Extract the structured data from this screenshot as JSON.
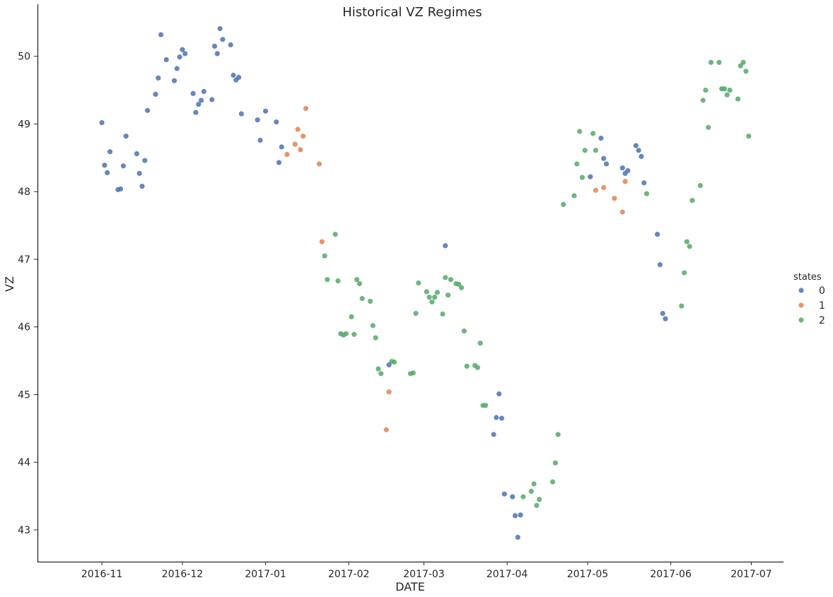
{
  "chart_data": {
    "type": "scatter",
    "title": "Historical VZ Regimes",
    "xlabel": "DATE",
    "ylabel": "VZ",
    "x_range": [
      "2016-10-08",
      "2017-07-13"
    ],
    "ylim": [
      42.53,
      50.77
    ],
    "x_ticks": [
      "2016-11-01",
      "2016-12-01",
      "2017-01-01",
      "2017-02-01",
      "2017-03-01",
      "2017-04-01",
      "2017-05-01",
      "2017-06-01",
      "2017-07-01"
    ],
    "x_tick_labels": [
      "2016-11",
      "2016-12",
      "2017-01",
      "2017-02",
      "2017-03",
      "2017-04",
      "2017-05",
      "2017-06",
      "2017-07"
    ],
    "y_ticks": [
      43,
      44,
      45,
      46,
      47,
      48,
      49,
      50
    ],
    "grid": false,
    "legend": {
      "title": "states",
      "position": "right"
    },
    "series": [
      {
        "name": "0",
        "color": "#4c72b0",
        "points": [
          [
            "2016-11-01",
            49.02
          ],
          [
            "2016-11-02",
            48.39
          ],
          [
            "2016-11-03",
            48.28
          ],
          [
            "2016-11-04",
            48.59
          ],
          [
            "2016-11-07",
            48.03
          ],
          [
            "2016-11-08",
            48.04
          ],
          [
            "2016-11-09",
            48.38
          ],
          [
            "2016-11-10",
            48.82
          ],
          [
            "2016-11-14",
            48.56
          ],
          [
            "2016-11-15",
            48.27
          ],
          [
            "2016-11-16",
            48.08
          ],
          [
            "2016-11-17",
            48.46
          ],
          [
            "2016-11-18",
            49.2
          ],
          [
            "2016-11-21",
            49.44
          ],
          [
            "2016-11-22",
            49.68
          ],
          [
            "2016-11-23",
            50.32
          ],
          [
            "2016-11-25",
            49.95
          ],
          [
            "2016-11-28",
            49.64
          ],
          [
            "2016-11-29",
            49.82
          ],
          [
            "2016-11-30",
            49.99
          ],
          [
            "2016-12-01",
            50.1
          ],
          [
            "2016-12-02",
            50.04
          ],
          [
            "2016-12-05",
            49.45
          ],
          [
            "2016-12-06",
            49.17
          ],
          [
            "2016-12-07",
            49.29
          ],
          [
            "2016-12-08",
            49.35
          ],
          [
            "2016-12-09",
            49.48
          ],
          [
            "2016-12-12",
            49.36
          ],
          [
            "2016-12-13",
            50.15
          ],
          [
            "2016-12-14",
            50.04
          ],
          [
            "2016-12-15",
            50.41
          ],
          [
            "2016-12-16",
            50.25
          ],
          [
            "2016-12-19",
            50.17
          ],
          [
            "2016-12-20",
            49.72
          ],
          [
            "2016-12-21",
            49.65
          ],
          [
            "2016-12-22",
            49.69
          ],
          [
            "2016-12-23",
            49.15
          ],
          [
            "2016-12-29",
            49.06
          ],
          [
            "2016-12-30",
            48.76
          ],
          [
            "2017-01-01",
            49.19
          ],
          [
            "2017-01-05",
            49.03
          ],
          [
            "2017-01-06",
            48.43
          ],
          [
            "2017-01-07",
            48.66
          ],
          [
            "2017-02-16",
            45.44
          ],
          [
            "2017-03-09",
            47.2
          ],
          [
            "2017-03-27",
            44.41
          ],
          [
            "2017-03-28",
            44.66
          ],
          [
            "2017-03-29",
            45.01
          ],
          [
            "2017-03-30",
            44.65
          ],
          [
            "2017-03-31",
            43.53
          ],
          [
            "2017-04-03",
            43.49
          ],
          [
            "2017-04-04",
            43.21
          ],
          [
            "2017-04-05",
            42.89
          ],
          [
            "2017-04-06",
            43.22
          ],
          [
            "2017-05-02",
            48.22
          ],
          [
            "2017-05-06",
            48.79
          ],
          [
            "2017-05-07",
            48.49
          ],
          [
            "2017-05-08",
            48.41
          ],
          [
            "2017-05-14",
            48.35
          ],
          [
            "2017-05-15",
            48.27
          ],
          [
            "2017-05-16",
            48.31
          ],
          [
            "2017-05-19",
            48.68
          ],
          [
            "2017-05-20",
            48.61
          ],
          [
            "2017-05-21",
            48.52
          ],
          [
            "2017-05-22",
            48.13
          ],
          [
            "2017-05-27",
            47.37
          ],
          [
            "2017-05-28",
            46.92
          ],
          [
            "2017-05-29",
            46.2
          ],
          [
            "2017-05-30",
            46.12
          ]
        ]
      },
      {
        "name": "1",
        "color": "#dd8452",
        "points": [
          [
            "2017-01-09",
            48.55
          ],
          [
            "2017-01-12",
            48.7
          ],
          [
            "2017-01-13",
            48.92
          ],
          [
            "2017-01-14",
            48.62
          ],
          [
            "2017-01-15",
            48.82
          ],
          [
            "2017-01-16",
            49.23
          ],
          [
            "2017-01-21",
            48.41
          ],
          [
            "2017-01-22",
            47.26
          ],
          [
            "2017-02-15",
            44.48
          ],
          [
            "2017-02-16",
            45.04
          ],
          [
            "2017-05-04",
            48.02
          ],
          [
            "2017-05-07",
            48.06
          ],
          [
            "2017-05-11",
            47.9
          ],
          [
            "2017-05-14",
            47.7
          ],
          [
            "2017-05-15",
            48.15
          ]
        ]
      },
      {
        "name": "2",
        "color": "#55a868",
        "points": [
          [
            "2017-01-23",
            47.05
          ],
          [
            "2017-01-24",
            46.7
          ],
          [
            "2017-01-27",
            47.37
          ],
          [
            "2017-01-28",
            46.68
          ],
          [
            "2017-01-29",
            45.9
          ],
          [
            "2017-01-30",
            45.88
          ],
          [
            "2017-01-31",
            45.9
          ],
          [
            "2017-02-02",
            46.15
          ],
          [
            "2017-02-03",
            45.89
          ],
          [
            "2017-02-04",
            46.7
          ],
          [
            "2017-02-05",
            46.64
          ],
          [
            "2017-02-06",
            46.42
          ],
          [
            "2017-02-09",
            46.38
          ],
          [
            "2017-02-10",
            46.02
          ],
          [
            "2017-02-11",
            45.84
          ],
          [
            "2017-02-12",
            45.38
          ],
          [
            "2017-02-13",
            45.31
          ],
          [
            "2017-02-17",
            45.49
          ],
          [
            "2017-02-18",
            45.48
          ],
          [
            "2017-02-24",
            45.31
          ],
          [
            "2017-02-25",
            45.32
          ],
          [
            "2017-02-26",
            46.2
          ],
          [
            "2017-02-27",
            46.65
          ],
          [
            "2017-03-02",
            46.52
          ],
          [
            "2017-03-03",
            46.44
          ],
          [
            "2017-03-04",
            46.37
          ],
          [
            "2017-03-05",
            46.44
          ],
          [
            "2017-03-06",
            46.51
          ],
          [
            "2017-03-08",
            46.19
          ],
          [
            "2017-03-09",
            46.73
          ],
          [
            "2017-03-10",
            46.47
          ],
          [
            "2017-03-11",
            46.7
          ],
          [
            "2017-03-13",
            46.64
          ],
          [
            "2017-03-14",
            46.63
          ],
          [
            "2017-03-15",
            46.58
          ],
          [
            "2017-03-16",
            45.94
          ],
          [
            "2017-03-17",
            45.42
          ],
          [
            "2017-03-20",
            45.43
          ],
          [
            "2017-03-21",
            45.4
          ],
          [
            "2017-03-22",
            45.76
          ],
          [
            "2017-03-23",
            44.84
          ],
          [
            "2017-03-24",
            44.84
          ],
          [
            "2017-04-07",
            43.49
          ],
          [
            "2017-04-10",
            43.57
          ],
          [
            "2017-04-11",
            43.68
          ],
          [
            "2017-04-12",
            43.36
          ],
          [
            "2017-04-13",
            43.45
          ],
          [
            "2017-04-18",
            43.71
          ],
          [
            "2017-04-19",
            43.99
          ],
          [
            "2017-04-20",
            44.41
          ],
          [
            "2017-04-22",
            47.81
          ],
          [
            "2017-04-26",
            47.94
          ],
          [
            "2017-04-27",
            48.41
          ],
          [
            "2017-04-28",
            48.89
          ],
          [
            "2017-04-29",
            48.21
          ],
          [
            "2017-04-30",
            48.61
          ],
          [
            "2017-05-03",
            48.86
          ],
          [
            "2017-05-04",
            48.61
          ],
          [
            "2017-05-23",
            47.97
          ],
          [
            "2017-06-05",
            46.31
          ],
          [
            "2017-06-06",
            46.8
          ],
          [
            "2017-06-07",
            47.26
          ],
          [
            "2017-06-08",
            47.19
          ],
          [
            "2017-06-09",
            47.87
          ],
          [
            "2017-06-12",
            48.09
          ],
          [
            "2017-06-13",
            49.35
          ],
          [
            "2017-06-14",
            49.5
          ],
          [
            "2017-06-15",
            48.95
          ],
          [
            "2017-06-16",
            49.91
          ],
          [
            "2017-06-19",
            49.91
          ],
          [
            "2017-06-20",
            49.52
          ],
          [
            "2017-06-21",
            49.52
          ],
          [
            "2017-06-22",
            49.43
          ],
          [
            "2017-06-23",
            49.5
          ],
          [
            "2017-06-26",
            49.37
          ],
          [
            "2017-06-27",
            49.86
          ],
          [
            "2017-06-28",
            49.91
          ],
          [
            "2017-06-29",
            49.78
          ],
          [
            "2017-06-30",
            48.82
          ]
        ]
      }
    ]
  }
}
